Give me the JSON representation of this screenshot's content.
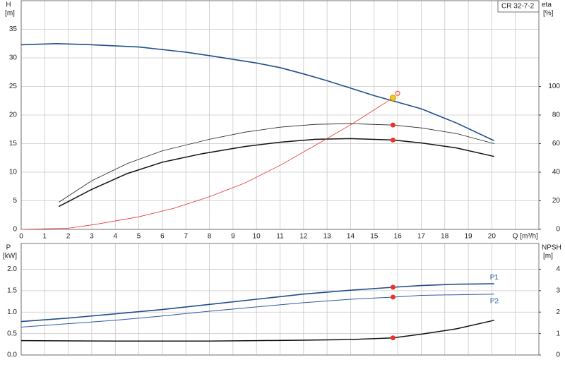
{
  "chart_data": [
    {
      "type": "line",
      "annotation": "CR 32-7-2",
      "ylabel": "H",
      "yunit": "[m]",
      "y2label": "eta",
      "y2unit": "[%]",
      "xlim": [
        0,
        22
      ],
      "xticks": [
        0,
        1,
        2,
        3,
        4,
        5,
        6,
        7,
        8,
        9,
        10,
        11,
        12,
        13,
        14,
        15,
        16,
        17,
        18,
        19,
        20,
        {
          "value": 21,
          "label": "Q [m³/h]"
        }
      ],
      "xtick_labels": true,
      "ylim": [
        0,
        40
      ],
      "yticks": [
        0,
        5,
        10,
        15,
        20,
        25,
        30,
        35
      ],
      "y2lim": [
        0,
        160
      ],
      "y2ticks": [
        0,
        20,
        40,
        60,
        80,
        100
      ],
      "grid": true,
      "series": [
        {
          "color": "#1f4e8c",
          "width": 1.6,
          "x": [
            0,
            1.5,
            3,
            5,
            7,
            8,
            10,
            11,
            12,
            13,
            14,
            15,
            17,
            18.5,
            20.1
          ],
          "values": [
            32.3,
            32.5,
            32.3,
            31.9,
            31.0,
            30.4,
            29.1,
            28.3,
            27.2,
            26.0,
            24.7,
            23.4,
            21.1,
            18.6,
            15.5
          ]
        },
        {
          "color": "#222222",
          "width": 0.8,
          "axis": "y2",
          "x": [
            1.6,
            3,
            4.5,
            6,
            8,
            9.5,
            11,
            12.5,
            14,
            15.8,
            17,
            18.5,
            20.1
          ],
          "values": [
            19,
            34,
            46,
            55,
            63,
            68,
            71.5,
            73.5,
            74,
            73,
            71,
            67,
            60
          ]
        },
        {
          "color": "#111111",
          "width": 1.5,
          "axis": "y2",
          "x": [
            1.6,
            3,
            4.5,
            6,
            7.7,
            9.5,
            11,
            12.5,
            14,
            15.8,
            17,
            18.5,
            20.1
          ],
          "values": [
            16,
            28,
            39,
            47,
            53,
            58,
            61,
            63,
            63.5,
            62.5,
            60.5,
            57,
            51
          ]
        },
        {
          "color": "#e8332a",
          "width": 0.8,
          "x": [
            0,
            2,
            3.2,
            5,
            6.5,
            8,
            9.5,
            11,
            12.5,
            14,
            15.8
          ],
          "values": [
            0,
            0.2,
            0.9,
            2.2,
            3.7,
            5.7,
            8.1,
            11.2,
            14.7,
            18.3,
            23
          ]
        }
      ],
      "points": [
        {
          "x": 15.8,
          "y": 23,
          "color": "#f5c518",
          "stroke": "#c89a00",
          "r": 4
        },
        {
          "x": 16,
          "y": 23.8,
          "color": "none",
          "stroke": "#e8332a",
          "r": 3
        },
        {
          "x": 15.8,
          "y": 73,
          "axis": "y2",
          "color": "#e8332a",
          "stroke": "#e8332a",
          "r": 3
        },
        {
          "x": 15.8,
          "y": 62.5,
          "axis": "y2",
          "color": "#e8332a",
          "stroke": "#e8332a",
          "r": 3
        }
      ]
    },
    {
      "type": "line",
      "ylabel": "P",
      "yunit": "[kW]",
      "y2label": "NPSH",
      "y2unit": "[m]",
      "xlim": [
        0,
        22
      ],
      "xticks": [
        0,
        1,
        2,
        3,
        4,
        5,
        6,
        7,
        8,
        9,
        10,
        11,
        12,
        13,
        14,
        15,
        16,
        17,
        18,
        19,
        20,
        21
      ],
      "xtick_labels": false,
      "ylim": [
        0,
        2.6
      ],
      "yticks": [
        {
          "value": 0,
          "label": "0.0"
        },
        0.5,
        {
          "value": 1,
          "label": "1.0"
        },
        1.5,
        {
          "value": 2,
          "label": "2.0"
        }
      ],
      "y2lim": [
        0,
        5.2
      ],
      "y2ticks": [
        0,
        1,
        2,
        3,
        4
      ],
      "grid": true,
      "series": [
        {
          "name": "P1",
          "color": "#1f4e8c",
          "width": 1.6,
          "x": [
            0,
            2,
            4,
            6,
            8,
            10,
            12,
            14,
            15.8,
            17,
            18.5,
            20.1
          ],
          "values": [
            0.78,
            0.86,
            0.96,
            1.06,
            1.18,
            1.3,
            1.42,
            1.51,
            1.58,
            1.62,
            1.65,
            1.66
          ]
        },
        {
          "name": "P2",
          "color": "#2b5aa0",
          "width": 1,
          "x": [
            0,
            2,
            4,
            6,
            8,
            10,
            12,
            14,
            15.8,
            17,
            20.1
          ],
          "values": [
            0.65,
            0.73,
            0.81,
            0.91,
            1.02,
            1.12,
            1.22,
            1.3,
            1.35,
            1.39,
            1.42
          ]
        },
        {
          "color": "#111111",
          "width": 1.5,
          "axis": "y2",
          "x": [
            0,
            4,
            8,
            10,
            12,
            14,
            15.8,
            17,
            18.5,
            20.1
          ],
          "values": [
            0.67,
            0.65,
            0.65,
            0.67,
            0.69,
            0.72,
            0.8,
            0.97,
            1.22,
            1.62
          ]
        }
      ],
      "points": [
        {
          "x": 15.8,
          "y": 1.58,
          "color": "#e8332a",
          "stroke": "#e8332a",
          "r": 3
        },
        {
          "x": 15.8,
          "y": 1.35,
          "color": "#e8332a",
          "stroke": "#e8332a",
          "r": 3
        },
        {
          "x": 15.8,
          "y": 0.8,
          "axis": "y2",
          "color": "#e8332a",
          "stroke": "#e8332a",
          "r": 3
        }
      ]
    }
  ]
}
